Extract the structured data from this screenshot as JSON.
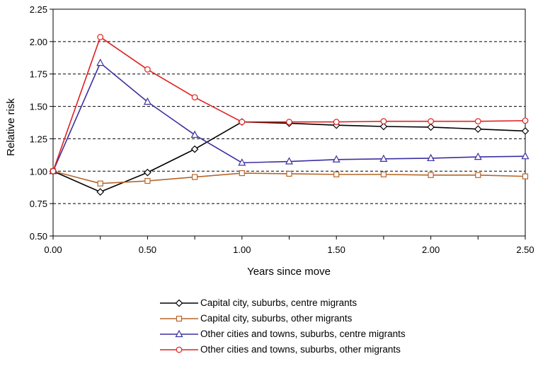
{
  "chart_data": {
    "type": "line",
    "title": "",
    "xlabel": "Years since move",
    "ylabel": "Relative risk",
    "xlim": [
      0,
      2.5
    ],
    "ylim": [
      0.5,
      2.25
    ],
    "x_ticks": [
      "0.00",
      "0.50",
      "1.00",
      "1.50",
      "2.00",
      "2.50"
    ],
    "y_ticks": [
      "2.25",
      "2.00",
      "1.75",
      "1.50",
      "1.25",
      "1.00",
      "0.75",
      "0.50"
    ],
    "grid": "horizontal dashed",
    "legend_position": "bottom",
    "x": [
      0,
      0.25,
      0.5,
      0.75,
      1.0,
      1.25,
      1.5,
      1.75,
      2.0,
      2.25,
      2.5
    ],
    "series": [
      {
        "name": "Capital city, suburbs, centre migrants",
        "color": "#000000",
        "marker": "diamond",
        "values": [
          1.0,
          0.84,
          0.99,
          1.17,
          1.38,
          1.37,
          1.355,
          1.345,
          1.34,
          1.325,
          1.31
        ]
      },
      {
        "name": "Capital city, suburbs, other migrants",
        "color": "#b5652a",
        "marker": "square",
        "values": [
          1.0,
          0.905,
          0.925,
          0.955,
          0.985,
          0.98,
          0.975,
          0.975,
          0.97,
          0.97,
          0.96
        ]
      },
      {
        "name": "Other cities and towns, suburbs, centre migrants",
        "color": "#3b2fa0",
        "marker": "triangle",
        "values": [
          1.0,
          1.835,
          1.535,
          1.28,
          1.065,
          1.075,
          1.09,
          1.095,
          1.1,
          1.11,
          1.115
        ]
      },
      {
        "name": "Other cities and towns, suburbs, other migrants",
        "color": "#e02020",
        "marker": "circle",
        "values": [
          1.0,
          2.035,
          1.785,
          1.57,
          1.38,
          1.38,
          1.38,
          1.385,
          1.385,
          1.385,
          1.39
        ]
      }
    ]
  }
}
